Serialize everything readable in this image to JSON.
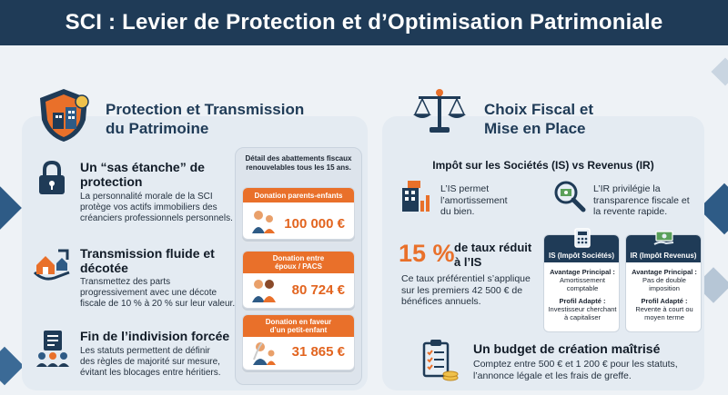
{
  "page_title": "SCI : Levier de Protection et d’Optimisation Patrimoniale",
  "left": {
    "title_line1": "Protection et Transmission",
    "title_line2": "du Patrimoine",
    "sections": [
      {
        "icon": "padlock-icon",
        "title_line1": "Un “sas étanche” de",
        "title_line2": "protection",
        "text_lines": [
          "La personnalité morale de la SCI",
          "protège vos actifs immobiliers des",
          "créanciers professionnels personnels."
        ]
      },
      {
        "icon": "house-transfer-icon",
        "title_line1": "Transmission fluide et",
        "title_line2": "décotée",
        "text_lines": [
          "Transmettez des parts",
          "progressivement avec une décote",
          "fiscale de 10 % à 20 % sur leur valeur."
        ]
      },
      {
        "icon": "governance-icon",
        "title_line1": "Fin de l’indivision forcée",
        "title_line2": "",
        "text_lines": [
          "Les statuts permettent de définir",
          "des règles de majorité sur mesure,",
          "évitant les blocages entre héritiers."
        ]
      }
    ],
    "abattements": {
      "title_line1": "Détail des abattements fiscaux",
      "title_line2": "renouvelables tous les 15 ans.",
      "cards": [
        {
          "label_line1": "Donation parents-enfants",
          "label_line2": "",
          "value": "100 000 €",
          "icon": "family-icon"
        },
        {
          "label_line1": "Donation entre",
          "label_line2": "époux / PACS",
          "value": "80 724 €",
          "icon": "couple-icon"
        },
        {
          "label_line1": "Donation en faveur",
          "label_line2": "d’un petit-enfant",
          "value": "31 865 €",
          "icon": "grandparent-icon"
        }
      ]
    }
  },
  "right": {
    "title_line1": "Choix Fiscal et",
    "title_line2": "Mise en Place",
    "subtitle": "Impôt sur les Sociétés (IS) vs Revenus (IR)",
    "is_point": [
      "L’IS permet",
      "l’amortissement",
      "du bien."
    ],
    "ir_point": [
      "L’IR privilégie la",
      "transparence fiscale et",
      "la revente rapide."
    ],
    "rate": {
      "value": "15 %",
      "label_line1": "de taux réduit",
      "label_line2": "à l’IS"
    },
    "rate_text": [
      "Ce taux préférentiel s’applique",
      "sur les premiers 42 500 € de",
      "bénéfices annuels."
    ],
    "is_card": {
      "title": "IS (Impôt Sociétés)",
      "adv_label": "Avantage Principal :",
      "adv_lines": [
        "Amortissement",
        "comptable"
      ],
      "profile_label": "Profil Adapté :",
      "profile_lines": [
        "Investisseur cherchant",
        "à capitaliser"
      ]
    },
    "ir_card": {
      "title": "IR (Impôt Revenus)",
      "adv_label": "Avantage Principal :",
      "adv_lines": [
        "Pas de double",
        "imposition"
      ],
      "profile_label": "Profil Adapté :",
      "profile_lines": [
        "Revente à court ou",
        "moyen terme"
      ]
    },
    "budget": {
      "title": "Un budget de création maîtrisé",
      "text_lines": [
        "Comptez entre 500 € et 1 200 € pour les statuts,",
        "l’annonce légale et les frais de greffe."
      ]
    }
  },
  "colors": {
    "navy": "#1f3b57",
    "orange": "#e9702a",
    "panel": "#e4ebf2"
  }
}
